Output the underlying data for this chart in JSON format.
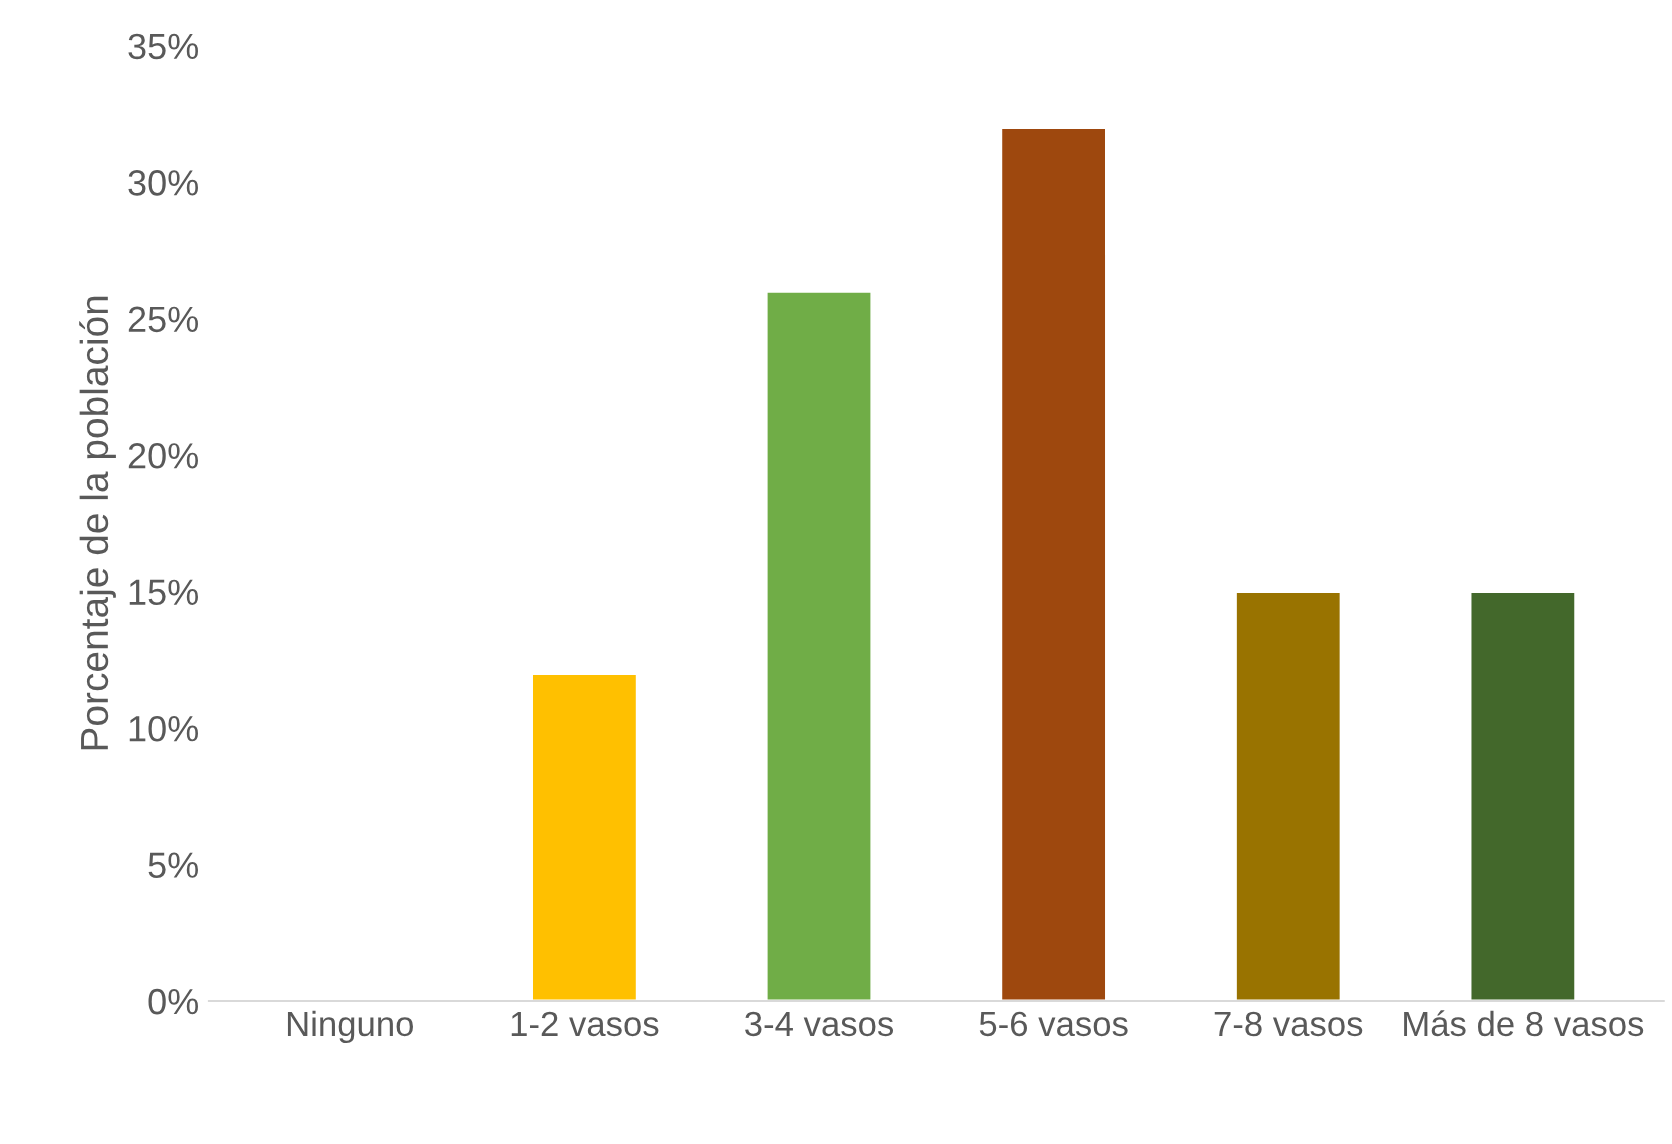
{
  "chart_data": {
    "type": "bar",
    "ylabel": "Porcentaje de la población",
    "categories": [
      "Ninguno",
      "1-2 vasos",
      "3-4 vasos",
      "5-6 vasos",
      "7-8 vasos",
      "Más de 8 vasos"
    ],
    "values": [
      0,
      12,
      26,
      32,
      15,
      15
    ],
    "colors": [
      null,
      "#ffc000",
      "#70ad47",
      "#9e480e",
      "#997300",
      "#43682b"
    ],
    "ylim": [
      0,
      35
    ],
    "yticks": [
      {
        "value": 0,
        "label": "0%"
      },
      {
        "value": 5,
        "label": "5%"
      },
      {
        "value": 10,
        "label": "10%"
      },
      {
        "value": 15,
        "label": "15%"
      },
      {
        "value": 20,
        "label": "20%"
      },
      {
        "value": 25,
        "label": "25%"
      },
      {
        "value": 30,
        "label": "30%"
      },
      {
        "value": 35,
        "label": "35%"
      }
    ],
    "grid": false,
    "legend": false
  }
}
